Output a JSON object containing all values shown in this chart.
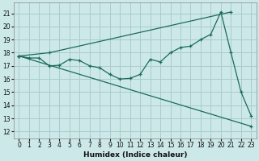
{
  "xlabel": "Humidex (Indice chaleur)",
  "bg_color": "#cce8e8",
  "grid_color": "#aacccc",
  "line_color": "#1a6b5a",
  "xlim": [
    -0.5,
    23.5
  ],
  "ylim": [
    11.5,
    21.8
  ],
  "yticks": [
    12,
    13,
    14,
    15,
    16,
    17,
    18,
    19,
    20,
    21
  ],
  "xticks": [
    0,
    1,
    2,
    3,
    4,
    5,
    6,
    7,
    8,
    9,
    10,
    11,
    12,
    13,
    14,
    15,
    16,
    17,
    18,
    19,
    20,
    21,
    22,
    23
  ],
  "line1_x": [
    0,
    3,
    21
  ],
  "line1_y": [
    17.75,
    18.0,
    21.1
  ],
  "line2_x": [
    0,
    1,
    2,
    3,
    4,
    5,
    6,
    7,
    8,
    9,
    10,
    11,
    12,
    13,
    14,
    15,
    16,
    17,
    18,
    19,
    20,
    21,
    22,
    23
  ],
  "line2_y": [
    17.75,
    17.6,
    17.6,
    17.0,
    17.05,
    17.5,
    17.4,
    17.0,
    16.85,
    16.35,
    16.0,
    16.05,
    16.35,
    17.5,
    17.3,
    18.0,
    18.4,
    18.5,
    19.0,
    19.4,
    21.1,
    18.0,
    15.0,
    13.2
  ],
  "line3_x": [
    0,
    23
  ],
  "line3_y": [
    17.75,
    12.4
  ],
  "xlabel_fontsize": 6.5,
  "tick_fontsize": 5.5
}
